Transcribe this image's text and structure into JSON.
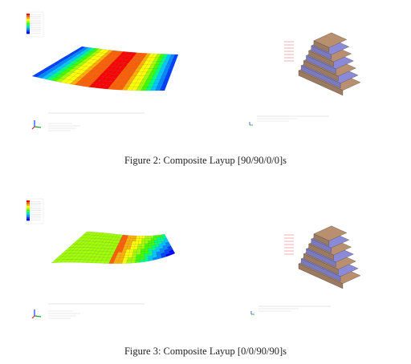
{
  "figures": [
    {
      "caption": "Figure 2: Composite Layup [90/90/0/0]s",
      "plate_shape": "concave-saddle",
      "colors": [
        "#0000ff",
        "#0040ff",
        "#0088ff",
        "#00c8ff",
        "#00ff80",
        "#40ff00",
        "#a0ff00",
        "#ffff00",
        "#ffb000",
        "#ff6000",
        "#ff0000"
      ]
    },
    {
      "caption": "Figure 3: Composite Layup [0/0/90/90]s",
      "plate_shape": "curled-edge",
      "colors": [
        "#0000ff",
        "#0040ff",
        "#0088ff",
        "#00c8ff",
        "#00ff80",
        "#40ff00",
        "#a0ff00",
        "#ffff00",
        "#ffb000",
        "#ff6000",
        "#ff0000"
      ]
    }
  ],
  "layup_colors": {
    "ply_a": "#8a8ad8",
    "ply_b": "#b89070",
    "side": "#9a8060"
  }
}
